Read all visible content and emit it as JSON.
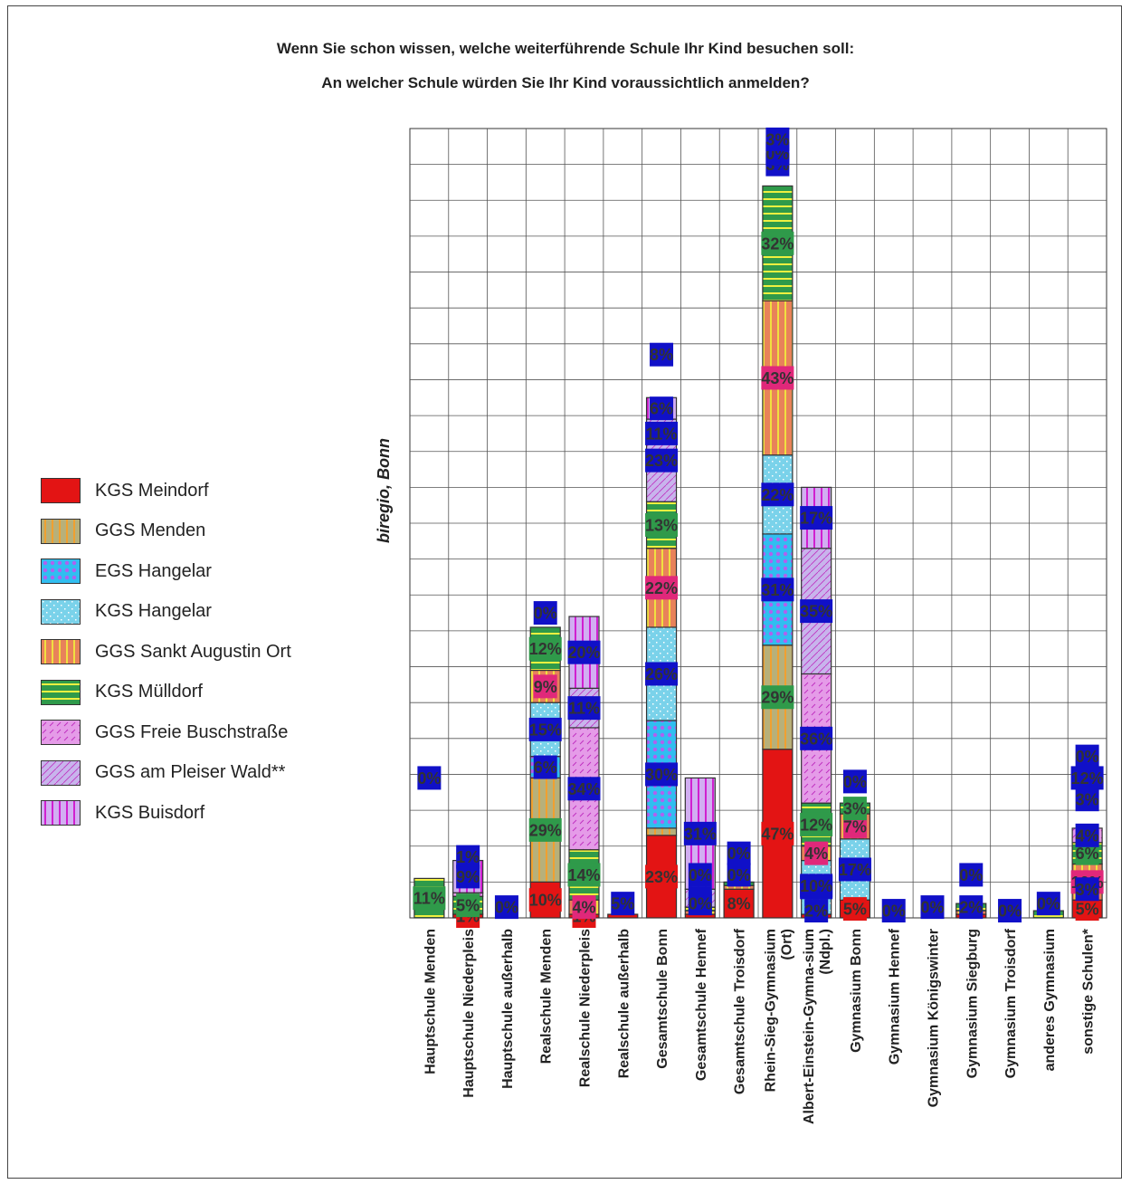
{
  "chart_data": {
    "type": "bar",
    "stacked": true,
    "title": "Wenn Sie schon wissen, welche weiterführende Schule Ihr Kind besuchen soll:",
    "subtitle": "An welcher Schule würden Sie Ihr Kind voraussichtlich anmelden?",
    "source_label": "biregio, Bonn",
    "grid": true,
    "legend_position": "left",
    "ylim": [
      0,
      220
    ],
    "categories": [
      "Hauptschule Menden",
      "Hauptschule Niederpleis",
      "Hauptschule außerhalb",
      "Realschule Menden",
      "Realschule Niederpleis",
      "Realschule außerhalb",
      "Gesamtschule Bonn",
      "Gesamtschule Hennef",
      "Gesamtschule Troisdorf",
      "Rhein-Sieg-Gymnasium (Ort)",
      "Albert-Einstein-Gymna-sium (Ndpl.)",
      "Gymnasium Bonn",
      "Gymnasium Hennef",
      "Gymnasium Königswinter",
      "Gymnasium Siegburg",
      "Gymnasium Troisdorf",
      "anderes Gymnasium",
      "sonstige Schulen*"
    ],
    "series": [
      {
        "name": "KGS Meindorf",
        "color": "#e31414",
        "pattern": "solid",
        "values": [
          0,
          1,
          0,
          10,
          1,
          1,
          23,
          1,
          8,
          47,
          1,
          5,
          0,
          0,
          1,
          0,
          0,
          5
        ],
        "labels": [
          "0%",
          "1%",
          "",
          "10%",
          "1%",
          "",
          "23%",
          "",
          "8%",
          "47%",
          "",
          "5%",
          "",
          "",
          "",
          "",
          "",
          "5%"
        ]
      },
      {
        "name": "GGS Menden",
        "color": "#b7b07a",
        "pattern": "vstripe-orange",
        "values": [
          0,
          0,
          0,
          29,
          0,
          0,
          2,
          0,
          0,
          29,
          0,
          0,
          0,
          0,
          0,
          0,
          0,
          0
        ],
        "labels": [
          "",
          "",
          "",
          "29%",
          "",
          "",
          "",
          "",
          "",
          "29%",
          "",
          "",
          "",
          "",
          "",
          "",
          "",
          ""
        ]
      },
      {
        "name": "EGS Hangelar",
        "color": "#30bef0",
        "pattern": "dots-purple",
        "values": [
          0,
          0,
          0,
          6,
          0,
          0,
          30,
          0,
          0,
          31,
          0,
          0,
          0,
          0,
          0,
          0,
          0,
          0
        ],
        "labels": [
          "",
          "",
          "",
          "6%",
          "",
          "",
          "30%",
          "",
          "",
          "31%",
          "",
          "",
          "",
          "",
          "",
          "",
          "",
          ""
        ]
      },
      {
        "name": "KGS Hangelar",
        "color": "#7ad2ea",
        "pattern": "fine-dots",
        "values": [
          0,
          0,
          0,
          15,
          0,
          0,
          26,
          0,
          0,
          22,
          15,
          17,
          0,
          0,
          0,
          0,
          0,
          0
        ],
        "labels": [
          "",
          "",
          "",
          "15%",
          "",
          "",
          "26%",
          "",
          "",
          "22%",
          "15%",
          "17%",
          "",
          "",
          "",
          "",
          "",
          ""
        ]
      },
      {
        "name": "GGS Sankt Augustin Ort",
        "color": "#e8825a",
        "pattern": "vstripe-yellow",
        "values": [
          0,
          0,
          0,
          9,
          4,
          0,
          22,
          1,
          1,
          43,
          4,
          7,
          0,
          0,
          1,
          0,
          0,
          10
        ],
        "labels": [
          "",
          "",
          "",
          "9%",
          "4%",
          "",
          "22%",
          "",
          "",
          "43%",
          "4%",
          "7%",
          "",
          "",
          "",
          "",
          "",
          "10%"
        ]
      },
      {
        "name": "KGS Mülldorf",
        "color": "#2f9a4a",
        "pattern": "hstripe-yellow",
        "values": [
          11,
          5,
          0,
          12,
          14,
          0,
          13,
          1,
          1,
          32,
          12,
          3,
          0,
          0,
          2,
          0,
          2,
          6
        ],
        "labels": [
          "11%",
          "5%",
          "",
          "12%",
          "14%",
          "",
          "13%",
          "",
          "",
          "32%",
          "12%",
          "3%",
          "",
          "",
          "",
          "",
          "",
          "6%"
        ]
      },
      {
        "name": "GGS Freie Buschstraße",
        "color": "#e59be8",
        "pattern": "dashes-magenta",
        "values": [
          0,
          1,
          0,
          0,
          34,
          0,
          0,
          0,
          0,
          0,
          36,
          0,
          0,
          0,
          0,
          0,
          0,
          4
        ],
        "labels": [
          "",
          "",
          "",
          "",
          "34%",
          "",
          "",
          "",
          "",
          "",
          "36%",
          "",
          "",
          "",
          "",
          "",
          "",
          "4%"
        ]
      },
      {
        "name": "GGS am Pleiser Wald**",
        "color": "#c8b4ec",
        "pattern": "diag-magenta",
        "values": [
          0,
          0,
          0,
          0,
          11,
          0,
          23,
          5,
          0,
          0,
          35,
          0,
          0,
          0,
          0,
          0,
          0,
          0
        ],
        "labels": [
          "",
          "",
          "",
          "",
          "11%",
          "",
          "23%",
          "5%",
          "",
          "",
          "35%",
          "",
          "",
          "",
          "",
          "",
          "",
          ""
        ]
      },
      {
        "name": "KGS Buisdorf",
        "color": "#d2aef2",
        "pattern": "vstripe-magenta",
        "values": [
          0,
          9,
          0,
          0,
          20,
          0,
          6,
          31,
          0,
          0,
          17,
          0,
          0,
          0,
          0,
          0,
          0,
          0
        ],
        "labels": [
          "",
          "9%",
          "",
          "",
          "20%",
          "",
          "6%",
          "31%",
          "",
          "",
          "17%",
          "",
          "",
          "",
          "",
          "",
          "",
          ""
        ]
      }
    ],
    "extra_labels": [
      {
        "cat": 0,
        "text": "0%",
        "at": 39
      },
      {
        "cat": 1,
        "text": "1%",
        "at": 17
      },
      {
        "cat": 2,
        "text": "0%",
        "at": 3
      },
      {
        "cat": 3,
        "text": "0%",
        "at": 85
      },
      {
        "cat": 5,
        "text": "5%",
        "at": 4
      },
      {
        "cat": 6,
        "text": "11%",
        "at": 135
      },
      {
        "cat": 6,
        "text": "8%",
        "at": 157
      },
      {
        "cat": 7,
        "text": "0%",
        "at": 4
      },
      {
        "cat": 7,
        "text": "0%",
        "at": 12
      },
      {
        "cat": 8,
        "text": "0%",
        "at": 18
      },
      {
        "cat": 8,
        "text": "0%",
        "at": 12
      },
      {
        "cat": 9,
        "text": "3%",
        "at": 210
      },
      {
        "cat": 9,
        "text": "0%",
        "at": 213
      },
      {
        "cat": 9,
        "text": "3%",
        "at": 217
      },
      {
        "cat": 10,
        "text": "10%",
        "at": 9
      },
      {
        "cat": 10,
        "text": "2%",
        "at": 2
      },
      {
        "cat": 11,
        "text": "0%",
        "at": 38
      },
      {
        "cat": 12,
        "text": "0%",
        "at": 2
      },
      {
        "cat": 13,
        "text": "0%",
        "at": 3
      },
      {
        "cat": 14,
        "text": "0%",
        "at": 12
      },
      {
        "cat": 14,
        "text": "2%",
        "at": 3
      },
      {
        "cat": 15,
        "text": "0%",
        "at": 2
      },
      {
        "cat": 16,
        "text": "0%",
        "at": 4
      },
      {
        "cat": 17,
        "text": "3%",
        "at": 8
      },
      {
        "cat": 17,
        "text": "3%",
        "at": 33
      },
      {
        "cat": 17,
        "text": "12%",
        "at": 39
      },
      {
        "cat": 17,
        "text": "0%",
        "at": 45
      }
    ]
  }
}
